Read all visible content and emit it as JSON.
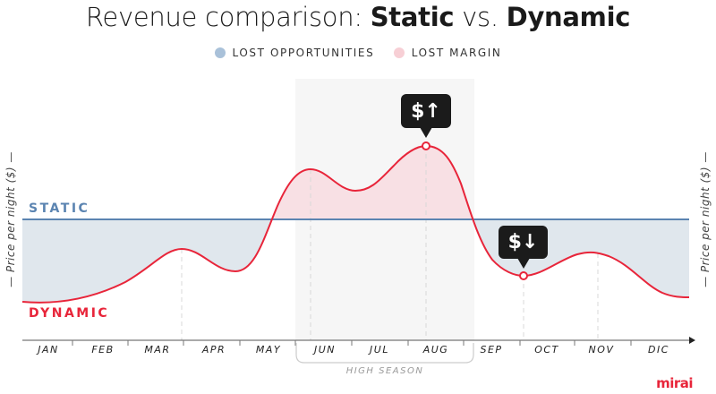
{
  "title": {
    "prefix": "Revenue comparison: ",
    "static": "Static",
    "middle": " vs. ",
    "dynamic": "Dynamic"
  },
  "legend": [
    {
      "label": "LOST OPPORTUNITIES",
      "color": "#a9c1d9"
    },
    {
      "label": "LOST MARGIN",
      "color": "#f7cfd5"
    }
  ],
  "y_axis_label": "— Price per night ($) —",
  "series": {
    "static": {
      "label": "STATIC",
      "color": "#5b84b1"
    },
    "dynamic": {
      "label": "DYNAMIC",
      "color": "#e8253a"
    }
  },
  "months": [
    "JAN",
    "FEB",
    "MAR",
    "APR",
    "MAY",
    "JUN",
    "JUL",
    "AUG",
    "SEP",
    "OCT",
    "NOV",
    "DIC"
  ],
  "high_season": {
    "label": "HIGH SEASON",
    "months": [
      "JUN",
      "JUL",
      "AUG"
    ]
  },
  "callouts": {
    "up": "$↑",
    "down": "$↓"
  },
  "logo": "mirai"
}
